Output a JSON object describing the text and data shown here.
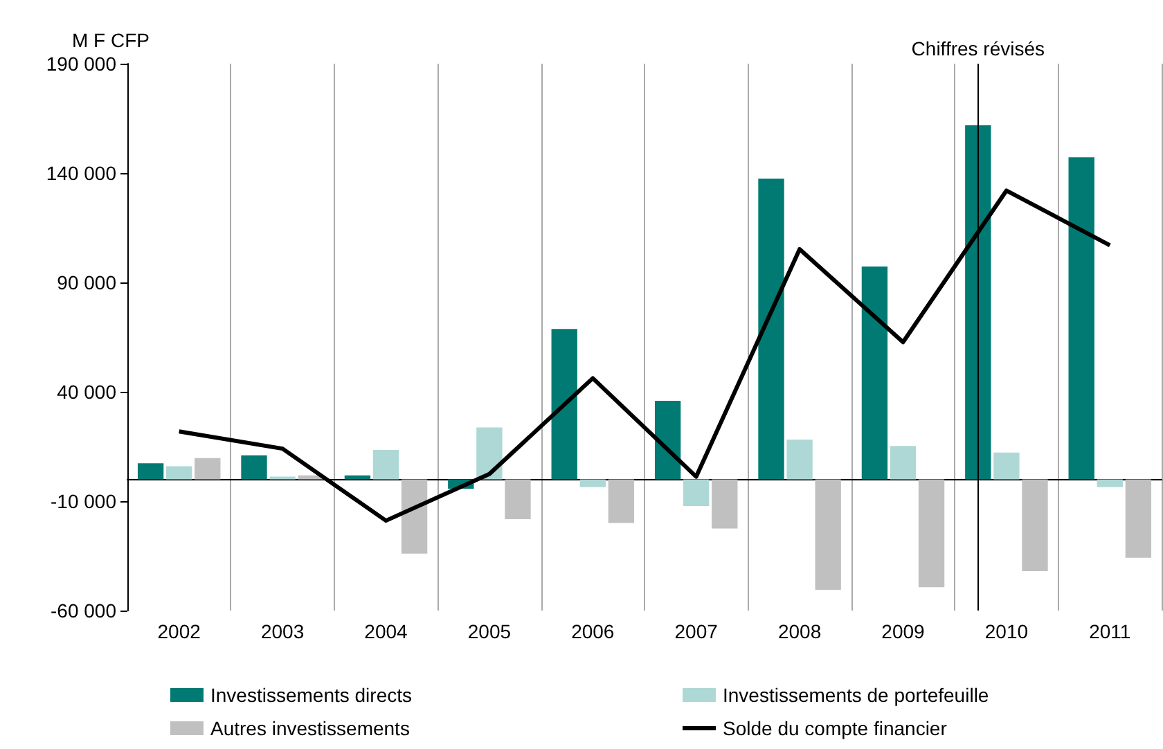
{
  "chart_data": {
    "type": "bar",
    "ylabel": "M F CFP",
    "categories": [
      "2002",
      "2003",
      "2004",
      "2005",
      "2006",
      "2007",
      "2008",
      "2009",
      "2010",
      "2011"
    ],
    "series": [
      {
        "name": "Investissements directs",
        "color": "#007a73",
        "values": [
          7300,
          11000,
          1800,
          -4300,
          68700,
          35900,
          137500,
          97300,
          161800,
          147200
        ]
      },
      {
        "name": "Investissements de portefeuille",
        "color": "#aed8d6",
        "values": [
          6000,
          1200,
          13400,
          23700,
          -3600,
          -12200,
          18200,
          15200,
          12200,
          -3600
        ]
      },
      {
        "name": "Autres investissements",
        "color": "#c0c0c0",
        "values": [
          9700,
          1800,
          -34000,
          -18200,
          -20000,
          -22500,
          -50500,
          -49300,
          -42000,
          -35900
        ]
      },
      {
        "name": "Solde du compte financier",
        "type": "line",
        "color": "#000000",
        "values": [
          21900,
          14000,
          -18900,
          2400,
          46200,
          1200,
          105200,
          62700,
          132000,
          107000
        ]
      }
    ],
    "ylim": [
      -60000,
      190000
    ],
    "yticks": [
      {
        "value": -60000,
        "label": "-60 000"
      },
      {
        "value": -10000,
        "label": "-10 000"
      },
      {
        "value": 40000,
        "label": "40 000"
      },
      {
        "value": 90000,
        "label": "90 000"
      },
      {
        "value": 140000,
        "label": "140 000"
      },
      {
        "value": 190000,
        "label": "190 000"
      }
    ],
    "grid": "x",
    "legend": "bottom",
    "marker": "none",
    "ref_lines": [
      {
        "axis": "x",
        "value": "2010",
        "label": "Chiffres révisés",
        "color": "#000000"
      }
    ]
  }
}
